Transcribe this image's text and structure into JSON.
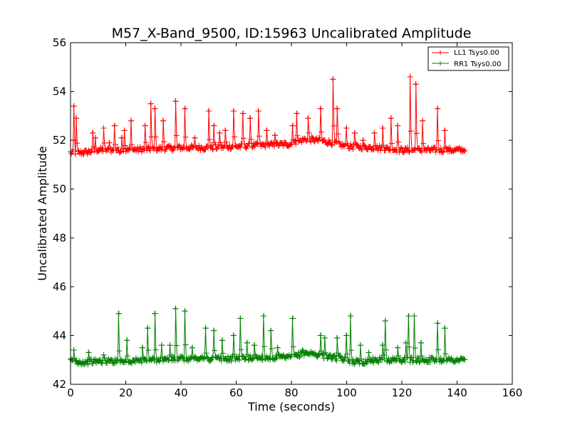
{
  "chart_data": {
    "type": "line",
    "title": "M57_X-Band_9500, ID:15963 Uncalibrated Amplitude",
    "xlabel": "Time (seconds)",
    "ylabel": "Uncalibrated Amplitude",
    "xlim": [
      0,
      160
    ],
    "ylim": [
      42,
      56
    ],
    "xticks": [
      "0",
      "20",
      "40",
      "60",
      "80",
      "100",
      "120",
      "140",
      "160"
    ],
    "yticks": [
      "42",
      "44",
      "46",
      "48",
      "50",
      "52",
      "54",
      "56"
    ],
    "grid": false,
    "legend_position": "top-right",
    "marker": "+",
    "series": [
      {
        "name": "LL1 Tsys0.00",
        "color": "#ff0000",
        "x_range": [
          0,
          143
        ],
        "baseline_points": [
          [
            0,
            51.5
          ],
          [
            5,
            51.5
          ],
          [
            10,
            51.6
          ],
          [
            20,
            51.6
          ],
          [
            30,
            51.65
          ],
          [
            40,
            51.7
          ],
          [
            50,
            51.7
          ],
          [
            60,
            51.75
          ],
          [
            70,
            51.8
          ],
          [
            80,
            51.85
          ],
          [
            85,
            52.05
          ],
          [
            90,
            52.0
          ],
          [
            95,
            51.9
          ],
          [
            100,
            51.75
          ],
          [
            110,
            51.7
          ],
          [
            120,
            51.6
          ],
          [
            130,
            51.6
          ],
          [
            140,
            51.6
          ],
          [
            143,
            51.6
          ]
        ],
        "spikes": [
          [
            1.2,
            53.4
          ],
          [
            2.0,
            52.9
          ],
          [
            8.0,
            52.3
          ],
          [
            9.0,
            52.1
          ],
          [
            12.0,
            52.5
          ],
          [
            14.0,
            51.9
          ],
          [
            16.0,
            52.6
          ],
          [
            18.5,
            52.1
          ],
          [
            19.5,
            52.4
          ],
          [
            22.0,
            52.8
          ],
          [
            27.0,
            52.6
          ],
          [
            29.0,
            53.5
          ],
          [
            30.5,
            53.3
          ],
          [
            33.5,
            52.8
          ],
          [
            38.0,
            53.6
          ],
          [
            41.5,
            53.3
          ],
          [
            45.0,
            52.1
          ],
          [
            50.0,
            53.2
          ],
          [
            52.0,
            52.6
          ],
          [
            54.0,
            52.3
          ],
          [
            56.0,
            52.4
          ],
          [
            59.0,
            53.2
          ],
          [
            62.5,
            53.1
          ],
          [
            65.0,
            52.9
          ],
          [
            68.0,
            53.2
          ],
          [
            71.0,
            52.4
          ],
          [
            74.0,
            52.2
          ],
          [
            80.5,
            52.6
          ],
          [
            82.0,
            53.1
          ],
          [
            86.0,
            52.9
          ],
          [
            90.5,
            53.3
          ],
          [
            95.0,
            54.5
          ],
          [
            96.5,
            53.3
          ],
          [
            100.0,
            52.5
          ],
          [
            103.0,
            52.3
          ],
          [
            106.0,
            52.0
          ],
          [
            110.0,
            52.3
          ],
          [
            113.0,
            52.5
          ],
          [
            116.0,
            52.9
          ],
          [
            118.5,
            52.6
          ],
          [
            123.0,
            54.6
          ],
          [
            125.0,
            54.3
          ],
          [
            127.5,
            52.8
          ],
          [
            133.0,
            53.3
          ],
          [
            135.5,
            52.4
          ]
        ]
      },
      {
        "name": "RR1 Tsys0.00",
        "color": "#008000",
        "x_range": [
          0,
          143
        ],
        "baseline_points": [
          [
            0,
            42.95
          ],
          [
            5,
            42.9
          ],
          [
            10,
            42.95
          ],
          [
            20,
            42.95
          ],
          [
            30,
            43.0
          ],
          [
            40,
            43.05
          ],
          [
            50,
            43.05
          ],
          [
            60,
            43.05
          ],
          [
            70,
            43.1
          ],
          [
            80,
            43.1
          ],
          [
            85,
            43.3
          ],
          [
            90,
            43.2
          ],
          [
            95,
            43.1
          ],
          [
            100,
            43.0
          ],
          [
            105,
            42.9
          ],
          [
            110,
            43.0
          ],
          [
            120,
            43.0
          ],
          [
            130,
            43.0
          ],
          [
            140,
            43.0
          ],
          [
            143,
            43.0
          ]
        ],
        "spikes": [
          [
            1.2,
            43.4
          ],
          [
            6.5,
            43.3
          ],
          [
            12.0,
            43.2
          ],
          [
            17.5,
            44.9
          ],
          [
            20.5,
            43.8
          ],
          [
            26.0,
            43.5
          ],
          [
            28.0,
            44.3
          ],
          [
            30.5,
            44.9
          ],
          [
            33.0,
            43.6
          ],
          [
            36.0,
            43.6
          ],
          [
            38.0,
            45.1
          ],
          [
            41.5,
            45.0
          ],
          [
            44.0,
            43.5
          ],
          [
            49.0,
            44.3
          ],
          [
            52.0,
            44.2
          ],
          [
            55.0,
            43.8
          ],
          [
            59.0,
            44.0
          ],
          [
            61.5,
            44.7
          ],
          [
            64.0,
            43.7
          ],
          [
            66.5,
            43.6
          ],
          [
            70.0,
            44.8
          ],
          [
            72.5,
            44.2
          ],
          [
            75.0,
            43.5
          ],
          [
            80.5,
            44.7
          ],
          [
            84.0,
            43.4
          ],
          [
            90.5,
            44.0
          ],
          [
            92.0,
            43.9
          ],
          [
            96.5,
            43.9
          ],
          [
            100.0,
            44.0
          ],
          [
            101.5,
            44.8
          ],
          [
            105.0,
            43.6
          ],
          [
            108.0,
            43.3
          ],
          [
            113.0,
            43.6
          ],
          [
            114.0,
            44.6
          ],
          [
            118.5,
            43.5
          ],
          [
            121.5,
            43.7
          ],
          [
            122.5,
            44.8
          ],
          [
            124.5,
            44.8
          ],
          [
            127.0,
            43.7
          ],
          [
            133.0,
            44.5
          ],
          [
            135.5,
            44.3
          ]
        ]
      }
    ]
  }
}
